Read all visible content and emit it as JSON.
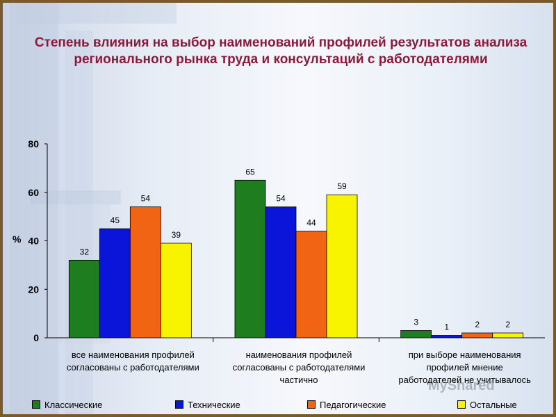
{
  "title": "Степень влияния на выбор наименований профилей результатов анализа регионального рынка труда и консультаций с работодателями",
  "watermark": "MyShared",
  "chart_data": {
    "type": "bar",
    "title": "Степень влияния на выбор наименований профилей результатов анализа регионального рынка труда и консультаций с работодателями",
    "ylabel": "%",
    "ylim": [
      0,
      80
    ],
    "yticks": [
      0,
      20,
      40,
      60,
      80
    ],
    "grid": false,
    "legend_position": "bottom",
    "categories": [
      [
        "все наименования профилей",
        "согласованы с работодателями"
      ],
      [
        "наименования профилей",
        "согласованы с работодателями",
        "частично"
      ],
      [
        "при выборе наименования",
        "профилей мнение",
        "работодателей не учитывалось"
      ]
    ],
    "series": [
      {
        "name": "Классические",
        "color": "#1e7d1e",
        "values": [
          32,
          65,
          3
        ]
      },
      {
        "name": "Технические",
        "color": "#0b14d9",
        "values": [
          45,
          54,
          1
        ]
      },
      {
        "name": "Педагогические",
        "color": "#f06414",
        "values": [
          54,
          44,
          2
        ]
      },
      {
        "name": "Остальные",
        "color": "#f8f400",
        "values": [
          39,
          59,
          2
        ]
      }
    ]
  }
}
